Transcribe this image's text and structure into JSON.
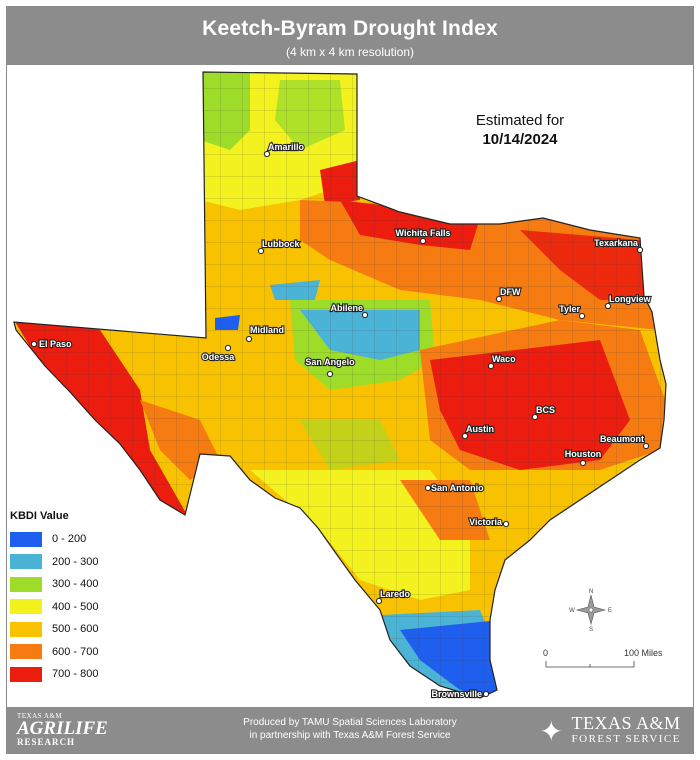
{
  "header": {
    "title": "Keetch-Byram Drought Index",
    "subtitle": "(4 km x 4 km resolution)"
  },
  "estimate": {
    "label": "Estimated for",
    "date": "10/14/2024"
  },
  "legend": {
    "title": "KBDI Value",
    "items": [
      {
        "label": "0 - 200",
        "color": "#1f5ff0"
      },
      {
        "label": "200 - 300",
        "color": "#4ab3d6"
      },
      {
        "label": "300 - 400",
        "color": "#9edc2a"
      },
      {
        "label": "400 - 500",
        "color": "#f4f21e"
      },
      {
        "label": "500 - 600",
        "color": "#f9c200"
      },
      {
        "label": "600 - 700",
        "color": "#f67c12"
      },
      {
        "label": "700 - 800",
        "color": "#ec1c0e"
      }
    ]
  },
  "cities": [
    {
      "name": "Amarillo"
    },
    {
      "name": "Lubbock"
    },
    {
      "name": "Wichita Falls"
    },
    {
      "name": "Texarkana"
    },
    {
      "name": "DFW"
    },
    {
      "name": "Tyler"
    },
    {
      "name": "Longview"
    },
    {
      "name": "Abilene"
    },
    {
      "name": "Midland"
    },
    {
      "name": "Odessa"
    },
    {
      "name": "El Paso"
    },
    {
      "name": "San Angelo"
    },
    {
      "name": "Waco"
    },
    {
      "name": "BCS"
    },
    {
      "name": "Austin"
    },
    {
      "name": "Beaumont"
    },
    {
      "name": "Houston"
    },
    {
      "name": "San Antonio"
    },
    {
      "name": "Victoria"
    },
    {
      "name": "Laredo"
    },
    {
      "name": "Brownsville"
    }
  ],
  "scale": {
    "start": "0",
    "end": "100 Miles"
  },
  "compass": {
    "n": "N",
    "s": "S",
    "e": "E",
    "w": "W"
  },
  "footer": {
    "line1": "Produced by TAMU Spatial Sciences Laboratory",
    "line2": "in partnership with Texas A&M Forest Service",
    "left_logo_1": "TEXAS A&M",
    "left_logo_2": "AGRILIFE",
    "left_logo_3": "RESEARCH",
    "right_logo_1": "TEXAS A&M",
    "right_logo_2": "FOREST SERVICE"
  }
}
